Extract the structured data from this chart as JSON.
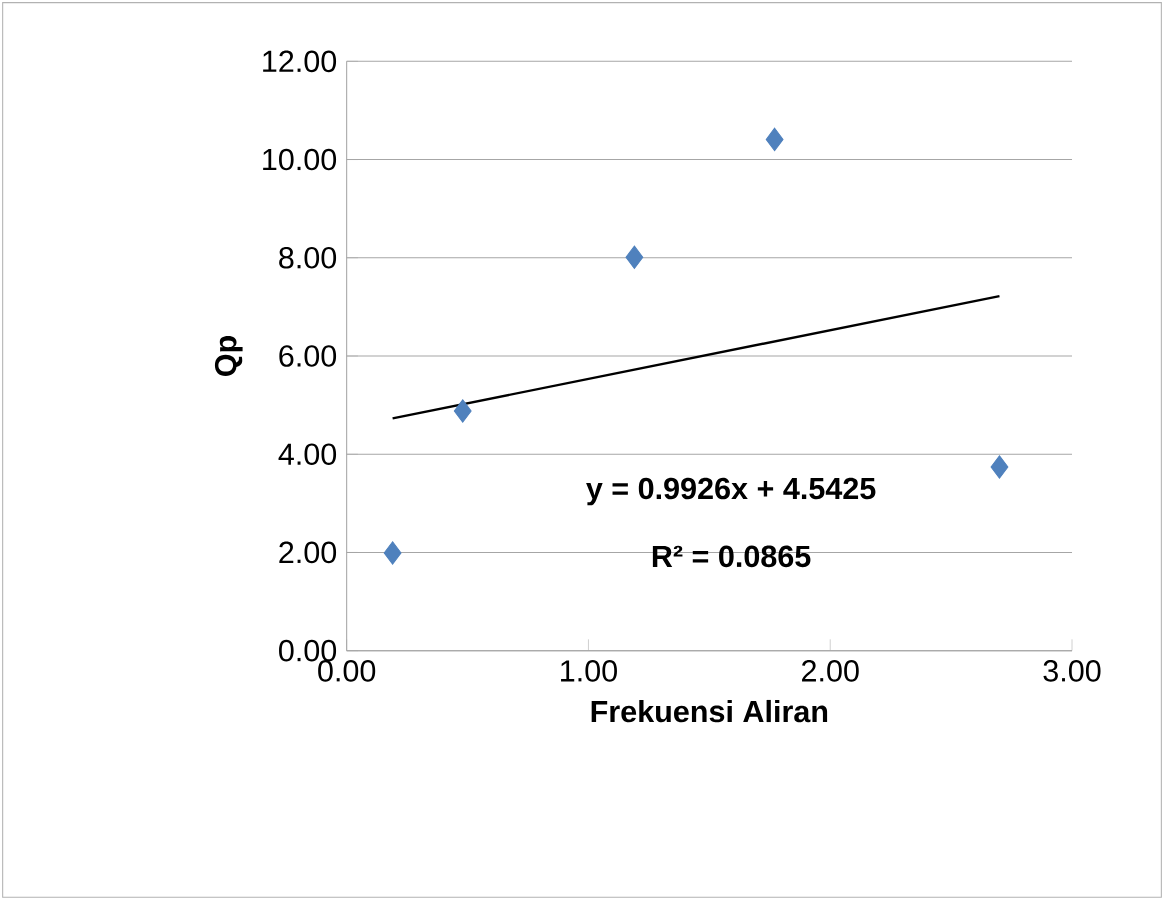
{
  "chart_data": {
    "type": "scatter",
    "xlabel": "Frekuensi Aliran",
    "ylabel": "Qp",
    "series": [
      {
        "color": "#4f81bd",
        "marker": "diamond",
        "x": [
          0.19,
          0.48,
          1.19,
          1.77,
          2.7
        ],
        "values": [
          1.99,
          4.88,
          8.01,
          10.41,
          3.74
        ]
      },
      {
        "type": "line",
        "color": "#000000",
        "marker": "none",
        "x": [
          0.19,
          2.7
        ],
        "values": [
          4.73,
          7.22
        ]
      }
    ],
    "xlim": [
      0,
      3
    ],
    "xticks": [
      {
        "value": 0,
        "label": "0.00"
      },
      {
        "value": 1,
        "label": "1.00"
      },
      {
        "value": 2,
        "label": "2.00"
      },
      {
        "value": 3,
        "label": "3.00"
      }
    ],
    "ylim": [
      0,
      12
    ],
    "yticks": [
      {
        "value": 0,
        "label": "0.00"
      },
      {
        "value": 2,
        "label": "2.00"
      },
      {
        "value": 4,
        "label": "4.00"
      },
      {
        "value": 6,
        "label": "6.00"
      },
      {
        "value": 8,
        "label": "8.00"
      },
      {
        "value": 10,
        "label": "10.00"
      },
      {
        "value": 12,
        "label": "12.00"
      }
    ],
    "grid": "y",
    "annotations": [
      "y = 0.9926x + 4.5425",
      "R² = 0.0865"
    ]
  }
}
